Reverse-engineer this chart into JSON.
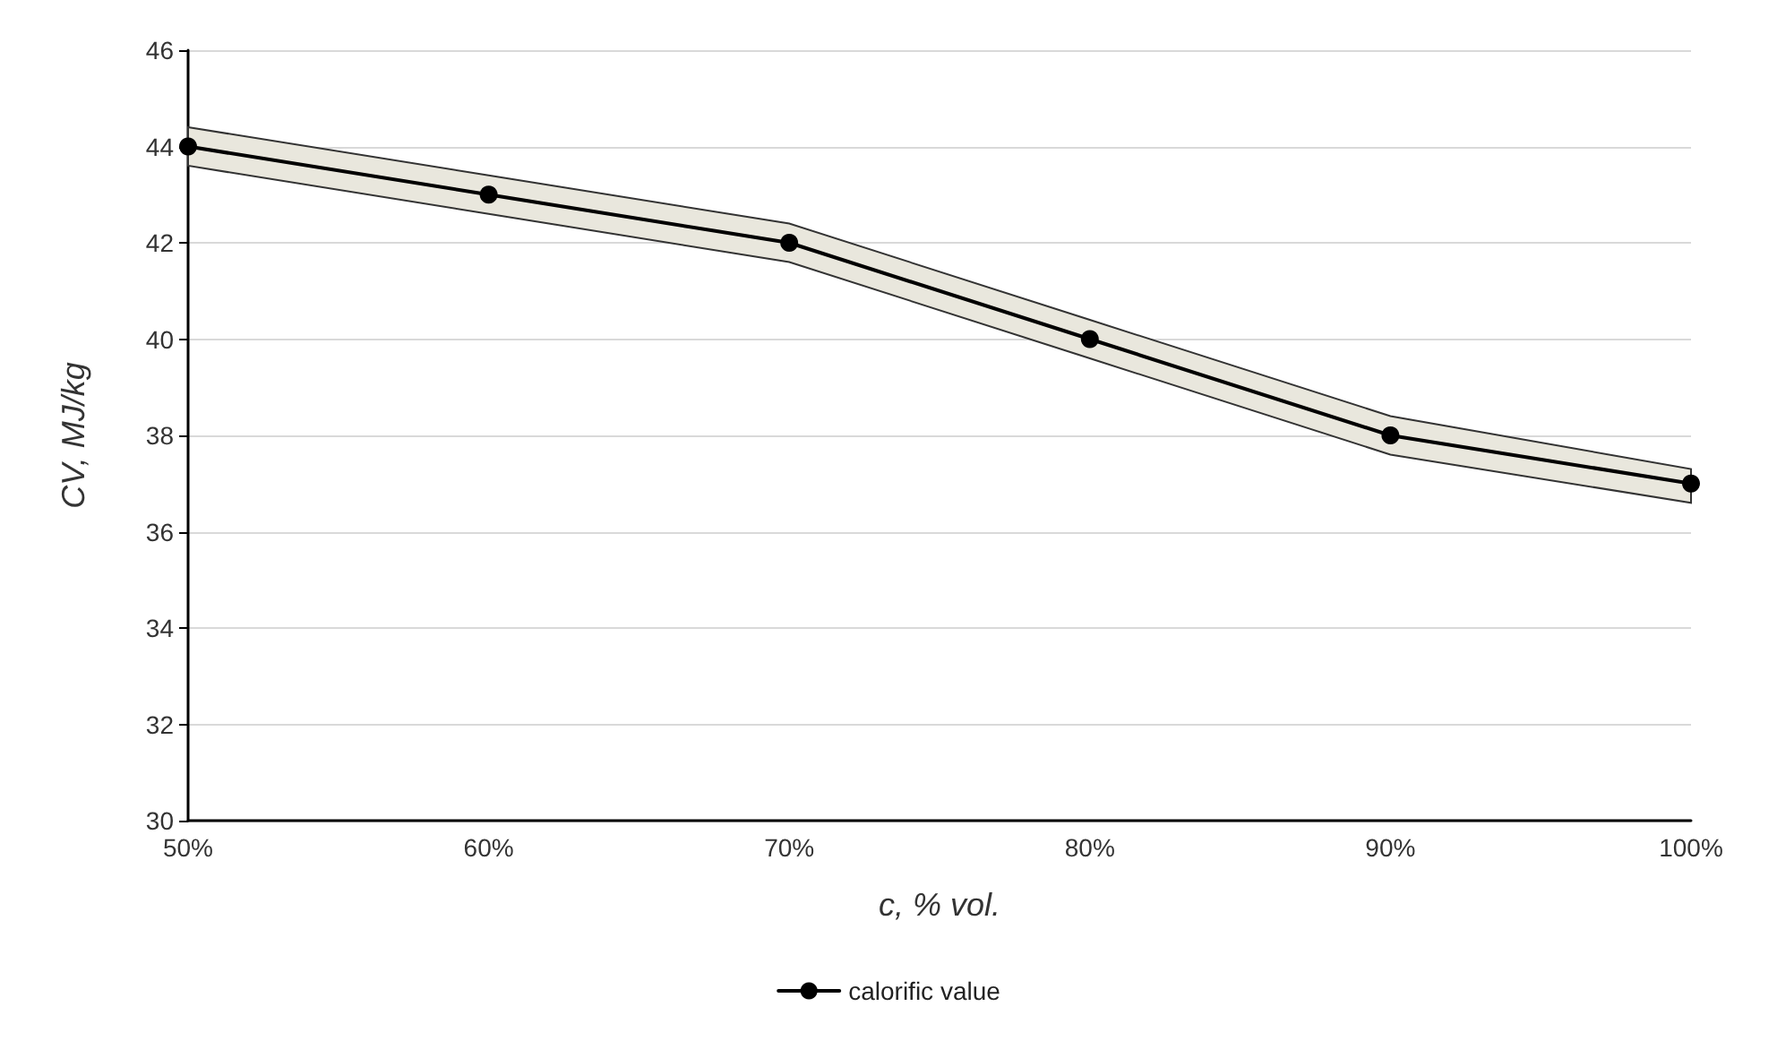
{
  "chart_data": {
    "type": "line",
    "xlabel": "c, % vol.",
    "ylabel": "CV, MJ/kg",
    "categories": [
      "50%",
      "60%",
      "70%",
      "80%",
      "90%",
      "100%"
    ],
    "series": [
      {
        "name": "calorific value",
        "color": "#000000",
        "values": [
          44,
          43,
          42,
          40,
          38,
          37
        ],
        "lower": [
          43.6,
          42.6,
          41.6,
          39.6,
          37.6,
          36.6
        ],
        "upper": [
          44.4,
          43.4,
          42.4,
          40.4,
          38.4,
          37.3
        ]
      }
    ],
    "ylim": [
      30,
      46
    ],
    "yticks": [
      30,
      32,
      34,
      36,
      38,
      40,
      42,
      44,
      46
    ],
    "grid": "y",
    "legend": "bottom",
    "marker": "circle",
    "line_style": "solid"
  }
}
